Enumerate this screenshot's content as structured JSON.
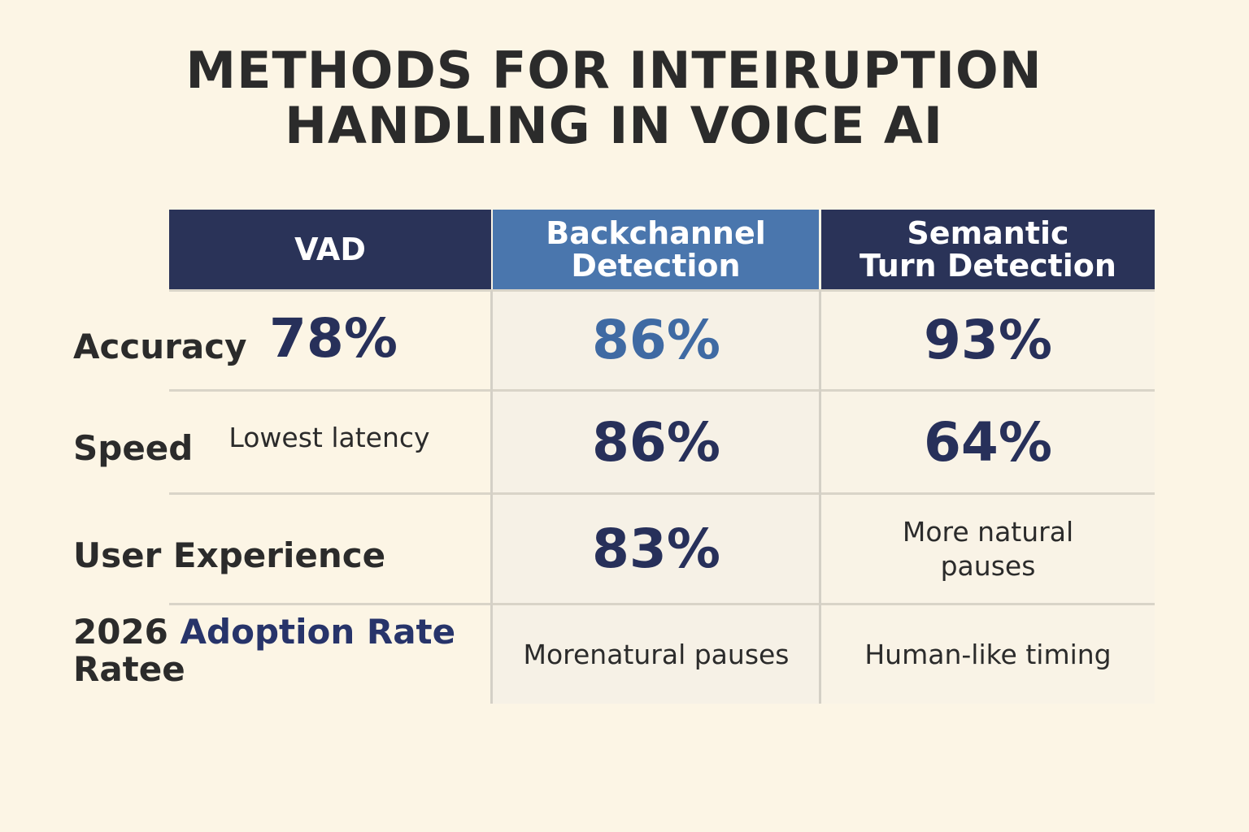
{
  "title": [
    "METHODS FOR INTEIRUPTION",
    "HANDLING IN VOICE AI"
  ],
  "table": {
    "header": [
      [
        "VAD"
      ],
      [
        "Backchannel",
        "Detection"
      ],
      [
        "Semantic",
        "Turn Detection"
      ]
    ],
    "rows": [
      {
        "label": [
          "Accuracy"
        ],
        "vad": "78%",
        "backchannel": [
          "86%"
        ],
        "semantic": [
          "93%"
        ]
      },
      {
        "label": [
          "Speed"
        ],
        "vad": "Lowest latency",
        "backchannel": [
          "86%"
        ],
        "semantic": [
          "64%"
        ]
      },
      {
        "label": [
          "User Experience"
        ],
        "backchannel": [
          "83%"
        ],
        "semantic": [
          "More natural",
          "pauses"
        ]
      },
      {
        "label": [
          "2026",
          "Adoption Rate",
          "Ratee"
        ],
        "backchannel": [
          "Morenatural pauses"
        ],
        "semantic": [
          "Human-like timing"
        ]
      }
    ]
  }
}
